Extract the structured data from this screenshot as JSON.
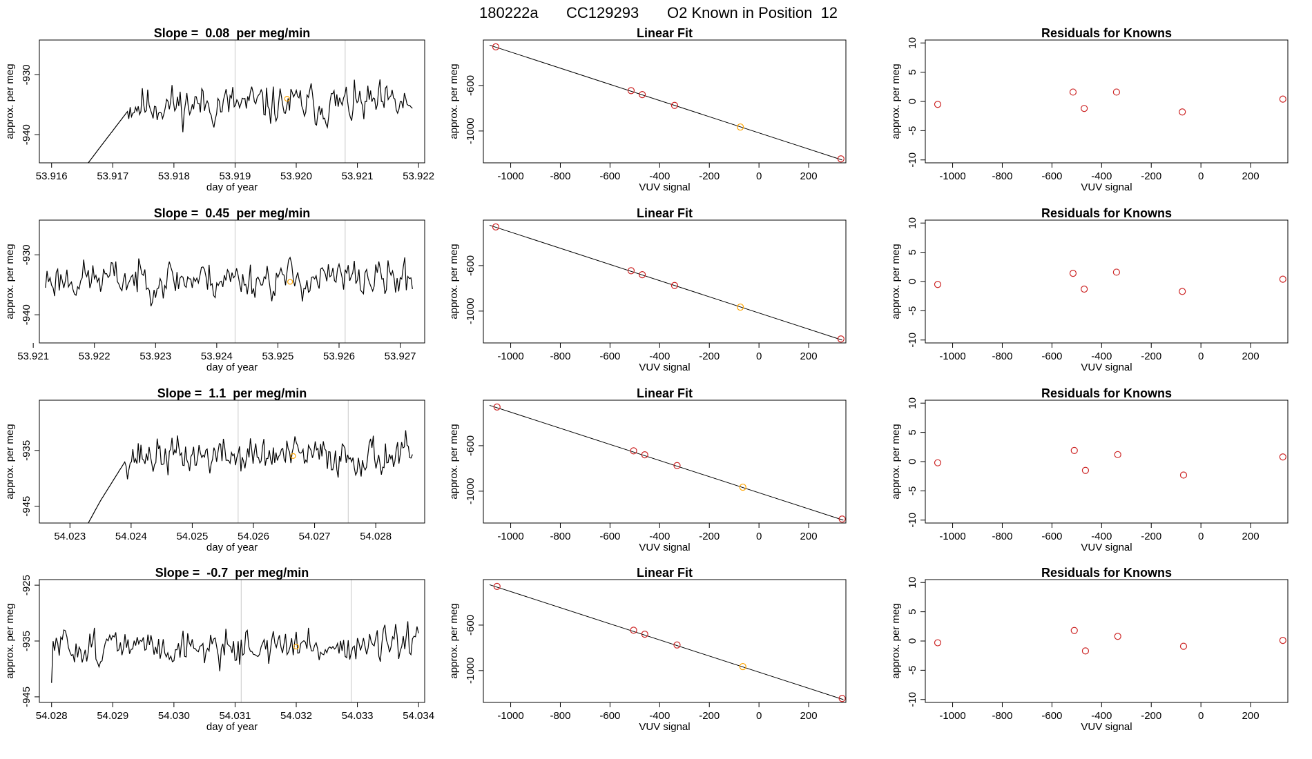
{
  "figure_title": {
    "run_id": "180222a",
    "cylinder": "CC129293",
    "description": "O2 Known in Position  12"
  },
  "colors": {
    "trace": "#000000",
    "marker_line": "#c8c8c8",
    "known_point": "#cd2626",
    "highlight_point": "#ffa500",
    "axis": "#000000"
  },
  "chart_data": [
    {
      "type": "line",
      "row": 0,
      "title": "Slope =  0.08  per meg/min",
      "xlabel": "day of year",
      "ylabel": "approx. per meg",
      "xlim": [
        53.9158,
        53.9221
      ],
      "ylim": [
        -944.7,
        -924.2
      ],
      "xticks": [
        "53.916",
        "53.917",
        "53.918",
        "53.919",
        "53.920",
        "53.921",
        "53.922"
      ],
      "yticks": [
        "-930",
        "-940"
      ],
      "vlines": [
        53.919,
        53.9208
      ],
      "start_x": 53.9166,
      "end_x": 53.9219,
      "start_y": -944.7,
      "ramp_x": [
        53.9166,
        53.9168,
        53.91725
      ],
      "ramp_y": [
        -944.7,
        -942,
        -936
      ],
      "base": -935.0,
      "amp": 2.4,
      "seed": 11,
      "highlight": {
        "x": 53.91985,
        "y": -934.0
      }
    },
    {
      "type": "line",
      "row": 1,
      "title": "Slope =  0.45  per meg/min",
      "xlabel": "day of year",
      "ylabel": "approx. per meg",
      "xlim": [
        53.9211,
        53.9274
      ],
      "ylim": [
        -944.7,
        -924.2
      ],
      "xticks": [
        "53.921",
        "53.922",
        "53.923",
        "53.924",
        "53.925",
        "53.926",
        "53.927"
      ],
      "yticks": [
        "-930",
        "-940"
      ],
      "vlines": [
        53.9243,
        53.9261
      ],
      "start_x": 53.9212,
      "end_x": 53.9272,
      "start_y": -935.5,
      "ramp_x": [],
      "ramp_y": [],
      "base": -934.0,
      "amp": 2.3,
      "seed": 23,
      "highlight": {
        "x": 53.9252,
        "y": -934.5
      }
    },
    {
      "type": "line",
      "row": 2,
      "title": "Slope =  1.1  per meg/min",
      "xlabel": "day of year",
      "ylabel": "approx. per meg",
      "xlim": [
        54.0225,
        54.0288
      ],
      "ylim": [
        -948.0,
        -926.0
      ],
      "xticks": [
        "54.023",
        "54.024",
        "54.025",
        "54.026",
        "54.027",
        "54.028"
      ],
      "yticks": [
        "-935",
        "-945"
      ],
      "vlines": [
        54.02575,
        54.02755
      ],
      "start_x": 54.0233,
      "end_x": 54.0286,
      "start_y": -948.0,
      "ramp_x": [
        54.0233,
        54.0235,
        54.0239
      ],
      "ramp_y": [
        -948,
        -944,
        -937
      ],
      "base": -936.0,
      "amp": 2.4,
      "seed": 37,
      "highlight": {
        "x": 54.02665,
        "y": -936.0
      }
    },
    {
      "type": "line",
      "row": 3,
      "title": "Slope =  -0.7  per meg/min",
      "xlabel": "day of year",
      "ylabel": "approx. per meg",
      "xlim": [
        54.0278,
        54.0341
      ],
      "ylim": [
        -946.0,
        -924.0
      ],
      "xticks": [
        "54.028",
        "54.029",
        "54.030",
        "54.031",
        "54.032",
        "54.033",
        "54.034"
      ],
      "yticks": [
        "-925",
        "-935",
        "-945"
      ],
      "vlines": [
        54.0311,
        54.0329
      ],
      "start_x": 54.028,
      "end_x": 54.034,
      "start_y": -942.5,
      "ramp_x": [],
      "ramp_y": [],
      "base": -936.0,
      "amp": 2.3,
      "seed": 51,
      "highlight": {
        "x": 54.032,
        "y": -936.0
      }
    },
    {
      "type": "scatter",
      "row": 0,
      "title": "Linear Fit",
      "xlabel": "VUV signal",
      "ylabel": "approx. per meg",
      "xlim": [
        -1110,
        350
      ],
      "ylim": [
        -1280,
        -200
      ],
      "xticks": [
        "-1000",
        "-800",
        "-600",
        "-400",
        "-200",
        "0",
        "200"
      ],
      "yticks": [
        "-600",
        "-1000"
      ],
      "points_x": [
        -1060,
        -515,
        -470,
        -340,
        -75,
        330
      ],
      "points_y": [
        -260,
        -645,
        -680,
        -775,
        -965,
        -1245
      ],
      "highlight_index": 4,
      "fit_line": [
        [
          -1085,
          -245
        ],
        [
          335,
          -1255
        ]
      ]
    },
    {
      "type": "scatter",
      "row": 1,
      "title": "Linear Fit",
      "xlabel": "VUV signal",
      "ylabel": "approx. per meg",
      "xlim": [
        -1110,
        350
      ],
      "ylim": [
        -1280,
        -200
      ],
      "xticks": [
        "-1000",
        "-800",
        "-600",
        "-400",
        "-200",
        "0",
        "200"
      ],
      "yticks": [
        "-600",
        "-1000"
      ],
      "points_x": [
        -1060,
        -515,
        -470,
        -340,
        -75,
        330
      ],
      "points_y": [
        -260,
        -645,
        -680,
        -775,
        -965,
        -1245
      ],
      "highlight_index": 4,
      "fit_line": [
        [
          -1085,
          -245
        ],
        [
          335,
          -1255
        ]
      ]
    },
    {
      "type": "scatter",
      "row": 2,
      "title": "Linear Fit",
      "xlabel": "VUV signal",
      "ylabel": "approx. per meg",
      "xlim": [
        -1110,
        350
      ],
      "ylim": [
        -1280,
        -200
      ],
      "xticks": [
        "-1000",
        "-800",
        "-600",
        "-400",
        "-200",
        "0",
        "200"
      ],
      "yticks": [
        "-600",
        "-1000"
      ],
      "points_x": [
        -1055,
        -505,
        -460,
        -330,
        -65,
        335
      ],
      "points_y": [
        -260,
        -645,
        -680,
        -775,
        -965,
        -1245
      ],
      "highlight_index": 4,
      "fit_line": [
        [
          -1085,
          -245
        ],
        [
          340,
          -1255
        ]
      ]
    },
    {
      "type": "scatter",
      "row": 3,
      "title": "Linear Fit",
      "xlabel": "VUV signal",
      "ylabel": "approx. per meg",
      "xlim": [
        -1110,
        350
      ],
      "ylim": [
        -1280,
        -200
      ],
      "xticks": [
        "-1000",
        "-800",
        "-600",
        "-400",
        "-200",
        "0",
        "200"
      ],
      "yticks": [
        "-600",
        "-1000"
      ],
      "points_x": [
        -1055,
        -505,
        -460,
        -330,
        -65,
        335
      ],
      "points_y": [
        -260,
        -645,
        -680,
        -775,
        -965,
        -1245
      ],
      "highlight_index": 4,
      "fit_line": [
        [
          -1085,
          -245
        ],
        [
          340,
          -1255
        ]
      ]
    },
    {
      "type": "scatter",
      "row": 0,
      "title": "Residuals for Knowns",
      "xlabel": "VUV signal",
      "ylabel": "approx. per meg",
      "xlim": [
        -1110,
        350
      ],
      "ylim": [
        -10.5,
        10.5
      ],
      "xticks": [
        "-1000",
        "-800",
        "-600",
        "-400",
        "-200",
        "0",
        "200"
      ],
      "yticks": [
        "-10",
        "-5",
        "0",
        "5",
        "10"
      ],
      "points_x": [
        -1060,
        -515,
        -470,
        -340,
        -75,
        330
      ],
      "points_y": [
        -0.5,
        1.6,
        -1.2,
        1.6,
        -1.8,
        0.4
      ]
    },
    {
      "type": "scatter",
      "row": 1,
      "title": "Residuals for Knowns",
      "xlabel": "VUV signal",
      "ylabel": "approx. per meg",
      "xlim": [
        -1110,
        350
      ],
      "ylim": [
        -10.5,
        10.5
      ],
      "xticks": [
        "-1000",
        "-800",
        "-600",
        "-400",
        "-200",
        "0",
        "200"
      ],
      "yticks": [
        "-10",
        "-5",
        "0",
        "5",
        "10"
      ],
      "points_x": [
        -1060,
        -515,
        -470,
        -340,
        -75,
        330
      ],
      "points_y": [
        -0.5,
        1.4,
        -1.3,
        1.6,
        -1.7,
        0.4
      ]
    },
    {
      "type": "scatter",
      "row": 2,
      "title": "Residuals for Knowns",
      "xlabel": "VUV signal",
      "ylabel": "approx. per meg",
      "xlim": [
        -1110,
        350
      ],
      "ylim": [
        -10.5,
        10.5
      ],
      "xticks": [
        "-1000",
        "-800",
        "-600",
        "-400",
        "-200",
        "0",
        "200"
      ],
      "yticks": [
        "-10",
        "-5",
        "0",
        "5",
        "10"
      ],
      "points_x": [
        -1060,
        -510,
        -465,
        -335,
        -70,
        330
      ],
      "points_y": [
        -0.2,
        1.9,
        -1.5,
        1.2,
        -2.3,
        0.8
      ]
    },
    {
      "type": "scatter",
      "row": 3,
      "title": "Residuals for Knowns",
      "xlabel": "VUV signal",
      "ylabel": "approx. per meg",
      "xlim": [
        -1110,
        350
      ],
      "ylim": [
        -10.5,
        10.5
      ],
      "xticks": [
        "-1000",
        "-800",
        "-600",
        "-400",
        "-200",
        "0",
        "200"
      ],
      "yticks": [
        "-10",
        "-5",
        "0",
        "5",
        "10"
      ],
      "points_x": [
        -1060,
        -510,
        -465,
        -335,
        -70,
        330
      ],
      "points_y": [
        -0.3,
        1.8,
        -1.7,
        0.8,
        -0.9,
        0.1
      ]
    }
  ]
}
